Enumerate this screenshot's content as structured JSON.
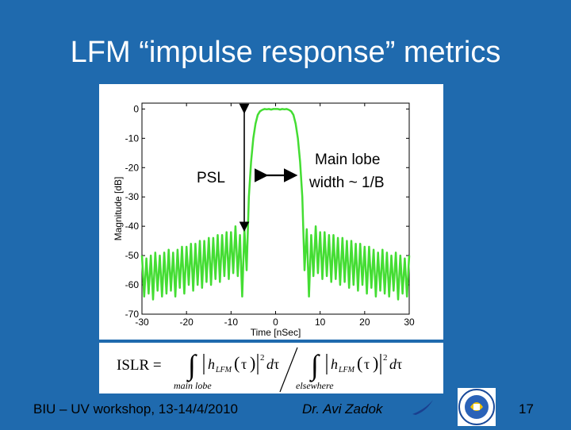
{
  "slide": {
    "title": "LFM “impulse response” metrics"
  },
  "annotations": {
    "psl": "PSL",
    "main_lobe_line1": "Main lobe",
    "main_lobe_line2": "width ~ 1/B"
  },
  "chart_data": {
    "type": "line",
    "title": "",
    "xlabel": "Time [nSec]",
    "ylabel": "Magnitude [dB]",
    "xlim": [
      -30,
      30
    ],
    "ylim": [
      -70,
      2
    ],
    "x_ticks": [
      -30,
      -20,
      -10,
      0,
      10,
      20,
      30
    ],
    "y_ticks": [
      0,
      -10,
      -20,
      -30,
      -40,
      -50,
      -60,
      -70
    ],
    "grid": false,
    "series": [
      {
        "color": "#44dd33",
        "x": [
          -30,
          -29.5,
          -29,
          -28.5,
          -28,
          -27.5,
          -27,
          -26.5,
          -26,
          -25.5,
          -25,
          -24.5,
          -24,
          -23.5,
          -23,
          -22.5,
          -22,
          -21.5,
          -21,
          -20.5,
          -20,
          -19.5,
          -19,
          -18.5,
          -18,
          -17.5,
          -17,
          -16.5,
          -16,
          -15.5,
          -15,
          -14.5,
          -14,
          -13.5,
          -13,
          -12.5,
          -12,
          -11.5,
          -11,
          -10.5,
          -10,
          -9.5,
          -9,
          -8.5,
          -8,
          -7.5,
          -7,
          -6.5,
          -6,
          -5.5,
          -5,
          -4.5,
          -4,
          -3.5,
          -3,
          -2.5,
          -2,
          -1.5,
          -1,
          -0.5,
          0,
          0.5,
          1,
          1.5,
          2,
          2.5,
          3,
          3.5,
          4,
          4.5,
          5,
          5.5,
          6,
          6.5,
          7,
          7.5,
          8,
          8.5,
          9,
          9.5,
          10,
          10.5,
          11,
          11.5,
          12,
          12.5,
          13,
          13.5,
          14,
          14.5,
          15,
          15.5,
          16,
          16.5,
          17,
          17.5,
          18,
          18.5,
          19,
          19.5,
          20,
          20.5,
          21,
          21.5,
          22,
          22.5,
          23,
          23.5,
          24,
          24.5,
          25,
          25.5,
          26,
          26.5,
          27,
          27.5,
          28,
          28.5,
          29,
          29.5,
          30
        ],
        "y": [
          -50,
          -64,
          -51,
          -63,
          -50,
          -65,
          -49,
          -62,
          -50,
          -64,
          -49,
          -63,
          -48,
          -62,
          -49,
          -64,
          -48,
          -61,
          -47,
          -63,
          -47,
          -60,
          -46,
          -62,
          -46,
          -60,
          -45,
          -61,
          -45,
          -59,
          -44,
          -60,
          -44,
          -58,
          -43,
          -59,
          -43,
          -57,
          -42,
          -58,
          -42,
          -56,
          -40,
          -57,
          -43,
          -64,
          -41,
          -55,
          -30,
          -18,
          -10,
          -5,
          -2,
          -0.8,
          -0.3,
          0,
          -0.1,
          0,
          -0.2,
          0,
          0,
          0,
          -0.2,
          0,
          -0.1,
          0,
          -0.3,
          -0.8,
          -2,
          -5,
          -10,
          -18,
          -30,
          -55,
          -41,
          -64,
          -43,
          -57,
          -40,
          -56,
          -42,
          -58,
          -42,
          -57,
          -43,
          -59,
          -43,
          -58,
          -44,
          -60,
          -44,
          -59,
          -45,
          -61,
          -45,
          -60,
          -46,
          -62,
          -46,
          -60,
          -47,
          -63,
          -47,
          -61,
          -48,
          -64,
          -49,
          -62,
          -48,
          -63,
          -49,
          -64,
          -50,
          -62,
          -49,
          -65,
          -50,
          -63,
          -51,
          -64,
          -50
        ]
      }
    ]
  },
  "formula": {
    "lhs": "ISLR =",
    "numerator_subscript": "main lobe",
    "denominator_subscript": "elsewhere"
  },
  "footer": {
    "left": "BIU – UV workshop, 13-14/4/2010",
    "center": "Dr. Avi Zadok",
    "page_number": "17"
  }
}
